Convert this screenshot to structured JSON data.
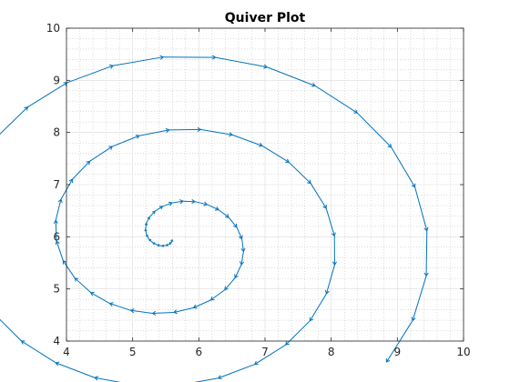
{
  "chart_data": {
    "type": "quiver",
    "title": "Quiver Plot",
    "xlabel": "",
    "ylabel": "",
    "xlim": [
      4,
      10
    ],
    "ylim": [
      4,
      10
    ],
    "xticks": [
      4,
      5,
      6,
      7,
      8,
      9,
      10
    ],
    "yticks": [
      4,
      5,
      6,
      7,
      8,
      9,
      10
    ],
    "grid": true,
    "minor_grid": true,
    "legend": "none",
    "color": "#0072BD",
    "spiral": {
      "center": [
        5.6,
        5.95
      ],
      "radius_start": 0.0,
      "radius_end": 4.0,
      "angle_start_deg": -90,
      "turns": 2.85,
      "growth_exponent": 1.0,
      "n_arrows": 80
    }
  }
}
